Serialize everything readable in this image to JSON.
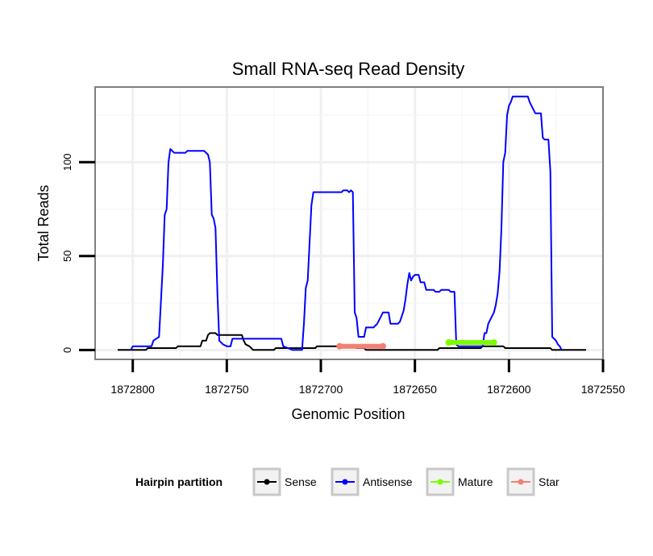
{
  "chart_data": {
    "type": "line",
    "title": "Small RNA-seq Read Density",
    "xlabel": "Genomic Position",
    "ylabel": "Total Reads",
    "xlim": [
      1872550,
      1872820
    ],
    "ylim": [
      -5,
      140
    ],
    "x_reversed": true,
    "x_ticks": [
      1872800,
      1872750,
      1872700,
      1872650,
      1872600,
      1872550
    ],
    "y_ticks": [
      0,
      50,
      100
    ],
    "grid": true,
    "legend": {
      "title": "Hairpin partition",
      "placement": "bottom",
      "entries": [
        "Sense",
        "Antisense",
        "Mature",
        "Star"
      ]
    },
    "series": [
      {
        "name": "Sense",
        "color": "#000000",
        "points": [
          [
            1872808,
            0
          ],
          [
            1872793,
            0
          ],
          [
            1872792,
            1
          ],
          [
            1872777,
            1
          ],
          [
            1872776,
            2
          ],
          [
            1872764,
            2
          ],
          [
            1872763,
            5
          ],
          [
            1872761,
            5
          ],
          [
            1872760,
            8
          ],
          [
            1872759,
            9
          ],
          [
            1872756,
            9
          ],
          [
            1872755,
            8
          ],
          [
            1872742,
            8
          ],
          [
            1872741,
            5
          ],
          [
            1872740,
            3
          ],
          [
            1872738,
            2
          ],
          [
            1872737,
            1
          ],
          [
            1872736,
            0
          ],
          [
            1872725,
            0
          ],
          [
            1872724,
            1
          ],
          [
            1872703,
            1
          ],
          [
            1872702,
            2
          ],
          [
            1872682,
            2
          ],
          [
            1872681,
            1
          ],
          [
            1872677,
            1
          ],
          [
            1872676,
            0
          ],
          [
            1872638,
            0
          ],
          [
            1872637,
            1
          ],
          [
            1872615,
            1
          ],
          [
            1872614,
            2
          ],
          [
            1872603,
            2
          ],
          [
            1872602,
            1
          ],
          [
            1872578,
            1
          ],
          [
            1872577,
            0
          ],
          [
            1872559,
            0
          ]
        ]
      },
      {
        "name": "Antisense",
        "color": "#0000ff",
        "points": [
          [
            1872801,
            0
          ],
          [
            1872800,
            2
          ],
          [
            1872790,
            2
          ],
          [
            1872789,
            5
          ],
          [
            1872786,
            7
          ],
          [
            1872784,
            45
          ],
          [
            1872783,
            72
          ],
          [
            1872782,
            75
          ],
          [
            1872781,
            100
          ],
          [
            1872780,
            107
          ],
          [
            1872778,
            105
          ],
          [
            1872772,
            105
          ],
          [
            1872771,
            106
          ],
          [
            1872762,
            106
          ],
          [
            1872761,
            105
          ],
          [
            1872760,
            104
          ],
          [
            1872759,
            100
          ],
          [
            1872758,
            72
          ],
          [
            1872757,
            70
          ],
          [
            1872756,
            65
          ],
          [
            1872755,
            30
          ],
          [
            1872754,
            5
          ],
          [
            1872752,
            3
          ],
          [
            1872750,
            2
          ],
          [
            1872748,
            2
          ],
          [
            1872747,
            6
          ],
          [
            1872721,
            6
          ],
          [
            1872720,
            2
          ],
          [
            1872715,
            0
          ],
          [
            1872710,
            0
          ],
          [
            1872709,
            14
          ],
          [
            1872708,
            33
          ],
          [
            1872707,
            37
          ],
          [
            1872705,
            77
          ],
          [
            1872704,
            84
          ],
          [
            1872689,
            84
          ],
          [
            1872688,
            85
          ],
          [
            1872686,
            85
          ],
          [
            1872685,
            84
          ],
          [
            1872684,
            85
          ],
          [
            1872683,
            84
          ],
          [
            1872682,
            20
          ],
          [
            1872681,
            17
          ],
          [
            1872680,
            7
          ],
          [
            1872677,
            7
          ],
          [
            1872676,
            12
          ],
          [
            1872672,
            12
          ],
          [
            1872671,
            13
          ],
          [
            1872670,
            14
          ],
          [
            1872668,
            18
          ],
          [
            1872667,
            20
          ],
          [
            1872664,
            20
          ],
          [
            1872663,
            14
          ],
          [
            1872659,
            14
          ],
          [
            1872658,
            15
          ],
          [
            1872656,
            21
          ],
          [
            1872655,
            27
          ],
          [
            1872654,
            35
          ],
          [
            1872653,
            41
          ],
          [
            1872652,
            37
          ],
          [
            1872651,
            39
          ],
          [
            1872650,
            40
          ],
          [
            1872648,
            40
          ],
          [
            1872647,
            36
          ],
          [
            1872645,
            36
          ],
          [
            1872644,
            32
          ],
          [
            1872640,
            32
          ],
          [
            1872639,
            31
          ],
          [
            1872637,
            31
          ],
          [
            1872636,
            32
          ],
          [
            1872632,
            32
          ],
          [
            1872631,
            31
          ],
          [
            1872629,
            31
          ],
          [
            1872628,
            3
          ],
          [
            1872627,
            2
          ],
          [
            1872614,
            2
          ],
          [
            1872613,
            9
          ],
          [
            1872612,
            9
          ],
          [
            1872611,
            14
          ],
          [
            1872609,
            18
          ],
          [
            1872608,
            20
          ],
          [
            1872607,
            24
          ],
          [
            1872606,
            30
          ],
          [
            1872605,
            42
          ],
          [
            1872604,
            65
          ],
          [
            1872603,
            100
          ],
          [
            1872602,
            105
          ],
          [
            1872601,
            125
          ],
          [
            1872600,
            130
          ],
          [
            1872599,
            132
          ],
          [
            1872598,
            135
          ],
          [
            1872590,
            135
          ],
          [
            1872589,
            132
          ],
          [
            1872588,
            130
          ],
          [
            1872586,
            126
          ],
          [
            1872583,
            126
          ],
          [
            1872582,
            113
          ],
          [
            1872581,
            112
          ],
          [
            1872579,
            112
          ],
          [
            1872578,
            95
          ],
          [
            1872577,
            7
          ],
          [
            1872576,
            6
          ],
          [
            1872575,
            5
          ],
          [
            1872574,
            3
          ],
          [
            1872573,
            2
          ],
          [
            1872572,
            0
          ]
        ]
      },
      {
        "name": "Mature",
        "color": "#7cfc00",
        "points": [
          [
            1872632,
            4
          ],
          [
            1872608,
            4
          ]
        ]
      },
      {
        "name": "Star",
        "color": "#f28072",
        "points": [
          [
            1872690,
            2
          ],
          [
            1872667,
            2
          ]
        ]
      }
    ]
  }
}
